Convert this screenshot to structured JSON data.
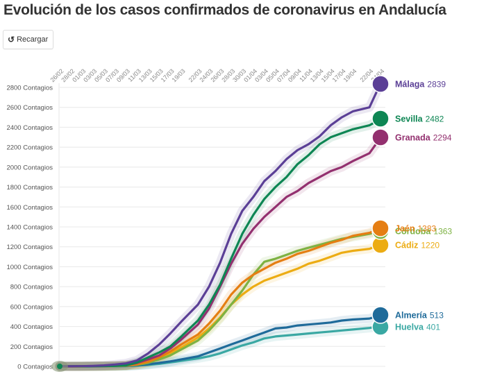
{
  "title": "Evolución de los casos confirmados de coronavirus en Andalucía",
  "toolbar": {
    "reload_label": "Recargar",
    "reload_icon": "reload-icon"
  },
  "chart_data": {
    "type": "line",
    "title": "Evolución de los casos confirmados de coronavirus en Andalucía",
    "xlabel": "",
    "ylabel": "",
    "y_unit_suffix": " Contagios",
    "ylim": [
      0,
      2800
    ],
    "yticks": [
      0,
      200,
      400,
      600,
      800,
      1000,
      1200,
      1400,
      1600,
      1800,
      2000,
      2200,
      2400,
      2600,
      2800
    ],
    "grid": true,
    "legend": "end-of-line labels (right)",
    "x": [
      "26/02",
      "28/02",
      "01/03",
      "03/03",
      "05/03",
      "07/03",
      "09/03",
      "11/03",
      "13/03",
      "15/03",
      "17/03",
      "19/03",
      "22/03",
      "24/03",
      "26/03",
      "28/03",
      "30/03",
      "01/04",
      "03/04",
      "05/04",
      "07/04",
      "09/04",
      "11/04",
      "13/04",
      "15/04",
      "17/04",
      "19/04",
      "22/04",
      "24/04"
    ],
    "x_day_offsets": [
      0,
      2,
      4,
      6,
      8,
      10,
      12,
      14,
      16,
      18,
      20,
      22,
      25,
      27,
      29,
      31,
      33,
      35,
      37,
      39,
      41,
      43,
      45,
      47,
      49,
      51,
      53,
      56,
      58
    ],
    "series": [
      {
        "name": "Málaga",
        "color": "#5b3f96",
        "last": 2839,
        "values": [
          1,
          1,
          2,
          5,
          10,
          18,
          30,
          60,
          130,
          220,
          330,
          450,
          620,
          800,
          1040,
          1330,
          1560,
          1700,
          1860,
          1960,
          2080,
          2170,
          2230,
          2310,
          2420,
          2500,
          2560,
          2600,
          2839
        ]
      },
      {
        "name": "Sevilla",
        "color": "#0e8654",
        "last": 2482,
        "values": [
          1,
          1,
          1,
          2,
          3,
          5,
          10,
          40,
          90,
          140,
          200,
          300,
          460,
          620,
          820,
          1080,
          1330,
          1520,
          1680,
          1800,
          1900,
          2030,
          2120,
          2230,
          2300,
          2340,
          2380,
          2420,
          2482
        ]
      },
      {
        "name": "Granada",
        "color": "#93306f",
        "last": 2294,
        "values": [
          0,
          0,
          1,
          2,
          3,
          6,
          12,
          35,
          70,
          110,
          180,
          270,
          420,
          580,
          800,
          1030,
          1230,
          1380,
          1500,
          1600,
          1700,
          1760,
          1840,
          1900,
          1960,
          2000,
          2060,
          2140,
          2294
        ]
      },
      {
        "name": "Córdoba",
        "color": "#7db243",
        "last": 1363,
        "values": [
          0,
          0,
          0,
          1,
          2,
          3,
          6,
          15,
          35,
          70,
          110,
          170,
          260,
          360,
          480,
          620,
          760,
          920,
          1050,
          1080,
          1120,
          1160,
          1190,
          1220,
          1250,
          1280,
          1300,
          1330,
          1363
        ]
      },
      {
        "name": "Jaén",
        "color": "#e57e13",
        "last": 1383,
        "values": [
          0,
          0,
          0,
          1,
          2,
          4,
          8,
          20,
          45,
          90,
          150,
          220,
          320,
          430,
          560,
          720,
          840,
          920,
          980,
          1040,
          1080,
          1130,
          1160,
          1200,
          1240,
          1270,
          1310,
          1340,
          1383
        ]
      },
      {
        "name": "Cádiz",
        "color": "#ecac13",
        "last": 1220,
        "values": [
          0,
          0,
          0,
          1,
          2,
          4,
          8,
          18,
          40,
          80,
          130,
          190,
          290,
          380,
          490,
          620,
          720,
          800,
          860,
          900,
          940,
          980,
          1030,
          1060,
          1100,
          1140,
          1160,
          1180,
          1220
        ]
      },
      {
        "name": "Almería",
        "color": "#1f6b9a",
        "last": 513,
        "values": [
          0,
          0,
          0,
          0,
          1,
          2,
          4,
          10,
          20,
          35,
          50,
          70,
          100,
          140,
          180,
          220,
          260,
          300,
          340,
          380,
          390,
          410,
          420,
          430,
          440,
          460,
          470,
          480,
          513
        ]
      },
      {
        "name": "Huelva",
        "color": "#3aa8a3",
        "last": 401,
        "values": [
          0,
          0,
          0,
          0,
          1,
          2,
          3,
          8,
          15,
          25,
          40,
          55,
          80,
          100,
          130,
          170,
          210,
          240,
          280,
          300,
          310,
          320,
          330,
          340,
          350,
          360,
          370,
          385,
          401
        ]
      }
    ]
  }
}
